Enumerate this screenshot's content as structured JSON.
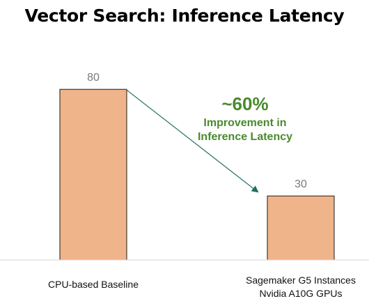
{
  "chart_data": {
    "type": "bar",
    "title": "Vector Search: Inference Latency",
    "categories": [
      [
        "CPU-based Baseline"
      ],
      [
        "Sagemaker G5 Instances",
        "Nvidia A10G GPUs"
      ]
    ],
    "values": [
      80,
      30
    ],
    "data_labels": [
      "80",
      "30"
    ],
    "ylim": [
      0,
      100
    ],
    "xlabel": "",
    "ylabel": "",
    "grid": false,
    "legend": "none",
    "bar_color": "#f0b48a",
    "bar_border_color": "#1a1a1a",
    "annotation": {
      "headline": "~60%",
      "line1": "Improvement in",
      "line2": "Inference Latency",
      "color": "#4a8a2e",
      "arrow": "from bar 1 top toward bar 2 top"
    }
  }
}
